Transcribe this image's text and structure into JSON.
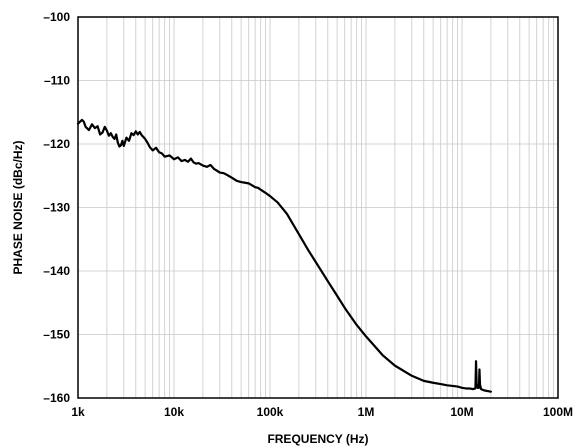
{
  "chart_data": {
    "type": "line",
    "title": "",
    "xlabel": "FREQUENCY (Hz)",
    "ylabel": "PHASE NOISE (dBc/Hz)",
    "xscale": "log",
    "xlim": [
      1000,
      100000000
    ],
    "ylim": [
      -160,
      -100
    ],
    "grid": true,
    "x_ticks": [
      1000,
      10000,
      100000,
      1000000,
      10000000,
      100000000
    ],
    "x_tick_labels": [
      "1k",
      "10k",
      "100k",
      "1M",
      "10M",
      "100M"
    ],
    "y_ticks": [
      -100,
      -110,
      -120,
      -130,
      -140,
      -150,
      -160
    ],
    "y_tick_labels": [
      "–100",
      "–110",
      "–120",
      "–130",
      "–140",
      "–150",
      "–160"
    ],
    "line_color": "#000000",
    "grid_color": "#c8c8c8",
    "series": [
      {
        "x": [
          1000,
          1100,
          1150,
          1200,
          1300,
          1400,
          1500,
          1600,
          1700,
          1800,
          1900,
          2000,
          2100,
          2200,
          2300,
          2400,
          2500,
          2600,
          2700,
          2800,
          2900,
          3000,
          3200,
          3400,
          3600,
          3800,
          4000,
          4200,
          4400,
          4600,
          4800,
          5000,
          5300,
          5600,
          6000,
          6500,
          7000,
          7500,
          8000,
          9000,
          10000,
          11000,
          12000,
          13000,
          14000,
          15000,
          16000,
          17000,
          18000,
          20000,
          22000,
          24000,
          26000,
          28000,
          30000,
          33000,
          36000,
          40000,
          45000,
          50000,
          55000,
          60000,
          65000,
          70000,
          75000,
          80000,
          90000,
          100000,
          120000,
          150000,
          200000,
          250000,
          300000,
          400000,
          500000,
          600000,
          800000,
          1000000,
          1500000,
          2000000,
          3000000,
          4000000,
          5000000,
          6000000,
          7000000,
          8000000,
          9000000,
          10000000,
          11000000,
          12000000,
          13000000,
          13800000,
          14000000,
          14200000,
          14600000,
          15000000,
          15200000,
          15400000,
          15800000,
          17000000,
          20000000
        ],
        "y": [
          -116.8,
          -116.2,
          -116.5,
          -117.3,
          -117.8,
          -116.9,
          -117.5,
          -117.2,
          -118.5,
          -118.2,
          -117.3,
          -117.9,
          -118.7,
          -118.3,
          -118.9,
          -119.2,
          -118.5,
          -119.8,
          -120.4,
          -120.2,
          -119.5,
          -120.3,
          -119.0,
          -119.5,
          -118.3,
          -118.6,
          -118.0,
          -118.5,
          -118.1,
          -118.6,
          -118.9,
          -119.2,
          -119.8,
          -120.5,
          -121.0,
          -120.6,
          -121.3,
          -121.5,
          -122.0,
          -121.8,
          -122.4,
          -122.1,
          -122.7,
          -122.5,
          -122.8,
          -122.3,
          -122.9,
          -123.1,
          -123.0,
          -123.4,
          -123.6,
          -123.3,
          -123.9,
          -124.2,
          -124.5,
          -124.6,
          -124.9,
          -125.3,
          -125.8,
          -126.0,
          -126.1,
          -126.2,
          -126.5,
          -126.8,
          -126.9,
          -127.2,
          -127.7,
          -128.2,
          -129.2,
          -131.0,
          -134.2,
          -136.7,
          -138.6,
          -141.6,
          -143.9,
          -145.8,
          -148.5,
          -150.3,
          -153.3,
          -154.9,
          -156.5,
          -157.3,
          -157.6,
          -157.8,
          -158.0,
          -158.1,
          -158.2,
          -158.4,
          -158.5,
          -158.5,
          -158.6,
          -158.5,
          -154.2,
          -157.8,
          -158.4,
          -158.4,
          -155.5,
          -157.9,
          -158.6,
          -158.8,
          -159.0
        ]
      }
    ]
  }
}
